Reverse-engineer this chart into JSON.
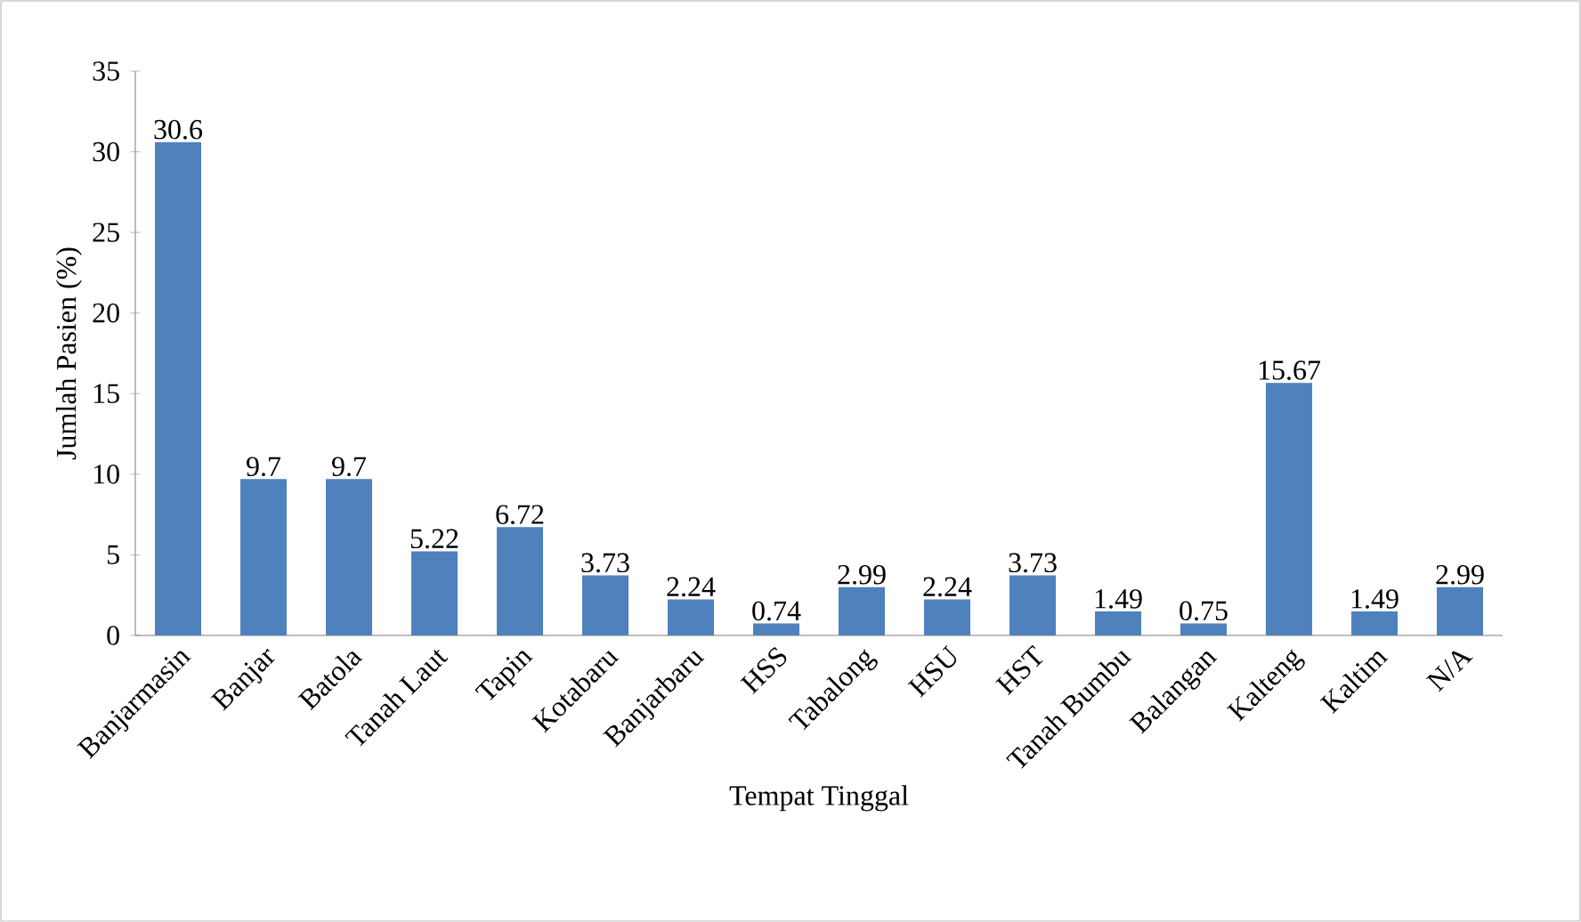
{
  "chart_data": {
    "type": "bar",
    "xlabel": "Tempat Tinggal",
    "ylabel": "Jumlah Pasien  (%)",
    "categories": [
      "Banjarmasin",
      "Banjar",
      "Batola",
      "Tanah Laut",
      "Tapin",
      "Kotabaru",
      "Banjarbaru",
      "HSS",
      "Tabalong",
      "HSU",
      "HST",
      "Tanah Bumbu",
      "Balangan",
      "Kalteng",
      "Kaltim",
      "N/A"
    ],
    "values": [
      30.6,
      9.7,
      9.7,
      5.22,
      6.72,
      3.73,
      2.24,
      0.74,
      2.99,
      2.24,
      3.73,
      1.49,
      0.75,
      15.67,
      1.49,
      2.99
    ],
    "color": "#4f81bd",
    "ylim": [
      0,
      35
    ],
    "yticks": [
      0,
      5,
      10,
      15,
      20,
      25,
      30,
      35
    ],
    "data_labels": true
  }
}
